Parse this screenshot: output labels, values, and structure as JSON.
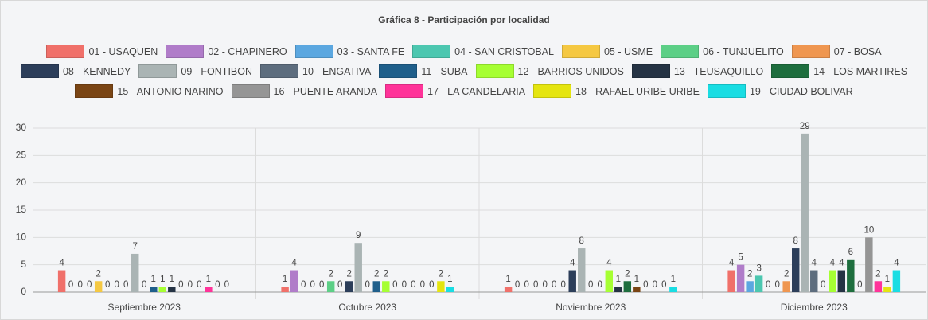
{
  "chart_data": {
    "type": "bar",
    "title": "Gráfica 8 - Participación por localidad",
    "categories": [
      "Septiembre 2023",
      "Octubre 2023",
      "Noviembre 2023",
      "Diciembre 2023"
    ],
    "series": [
      {
        "name": "01 - USAQUEN",
        "color": "#f0706a",
        "values": [
          4,
          1,
          1,
          4
        ]
      },
      {
        "name": "02 - CHAPINERO",
        "color": "#b07cc9",
        "values": [
          0,
          4,
          0,
          5
        ]
      },
      {
        "name": "03 - SANTA FE",
        "color": "#5ba7e0",
        "values": [
          0,
          0,
          0,
          2
        ]
      },
      {
        "name": "04 - SAN CRISTOBAL",
        "color": "#4cc7b0",
        "values": [
          0,
          0,
          0,
          3
        ]
      },
      {
        "name": "05 - USME",
        "color": "#f5c842",
        "values": [
          2,
          0,
          0,
          0
        ]
      },
      {
        "name": "06 - TUNJUELITO",
        "color": "#5ccf86",
        "values": [
          0,
          2,
          0,
          0
        ]
      },
      {
        "name": "07 - BOSA",
        "color": "#ef9650",
        "values": [
          0,
          0,
          0,
          2
        ]
      },
      {
        "name": "08 - KENNEDY",
        "color": "#2c3e5a",
        "values": [
          0,
          2,
          4,
          8
        ]
      },
      {
        "name": "09 - FONTIBON",
        "color": "#aab4b4",
        "values": [
          7,
          9,
          8,
          29
        ]
      },
      {
        "name": "10 - ENGATIVA",
        "color": "#5d6d7e",
        "values": [
          0,
          0,
          0,
          4
        ]
      },
      {
        "name": "11 - SUBA",
        "color": "#1f5f8b",
        "values": [
          1,
          2,
          0,
          0
        ]
      },
      {
        "name": "12 - BARRIOS UNIDOS",
        "color": "#a6ff33",
        "values": [
          1,
          2,
          4,
          4
        ]
      },
      {
        "name": "13 - TEUSAQUILLO",
        "color": "#253344",
        "values": [
          1,
          0,
          1,
          4
        ]
      },
      {
        "name": "14 - LOS MARTIRES",
        "color": "#1e6e3e",
        "values": [
          0,
          0,
          2,
          6
        ]
      },
      {
        "name": "15 - ANTONIO NARINO",
        "color": "#7a4514",
        "values": [
          0,
          0,
          1,
          0
        ]
      },
      {
        "name": "16 - PUENTE ARANDA",
        "color": "#959595",
        "values": [
          0,
          0,
          0,
          10
        ]
      },
      {
        "name": "17 - LA CANDELARIA",
        "color": "#ff3399",
        "values": [
          1,
          0,
          0,
          2
        ]
      },
      {
        "name": "18 - RAFAEL URIBE URIBE",
        "color": "#e5e510",
        "values": [
          0,
          2,
          0,
          1
        ]
      },
      {
        "name": "19 - CIUDAD BOLIVAR",
        "color": "#19dde3",
        "values": [
          0,
          1,
          1,
          4
        ]
      }
    ],
    "ylim": [
      0,
      30
    ],
    "yticks": [
      0,
      5,
      10,
      15,
      20,
      25,
      30
    ],
    "grid": true
  }
}
